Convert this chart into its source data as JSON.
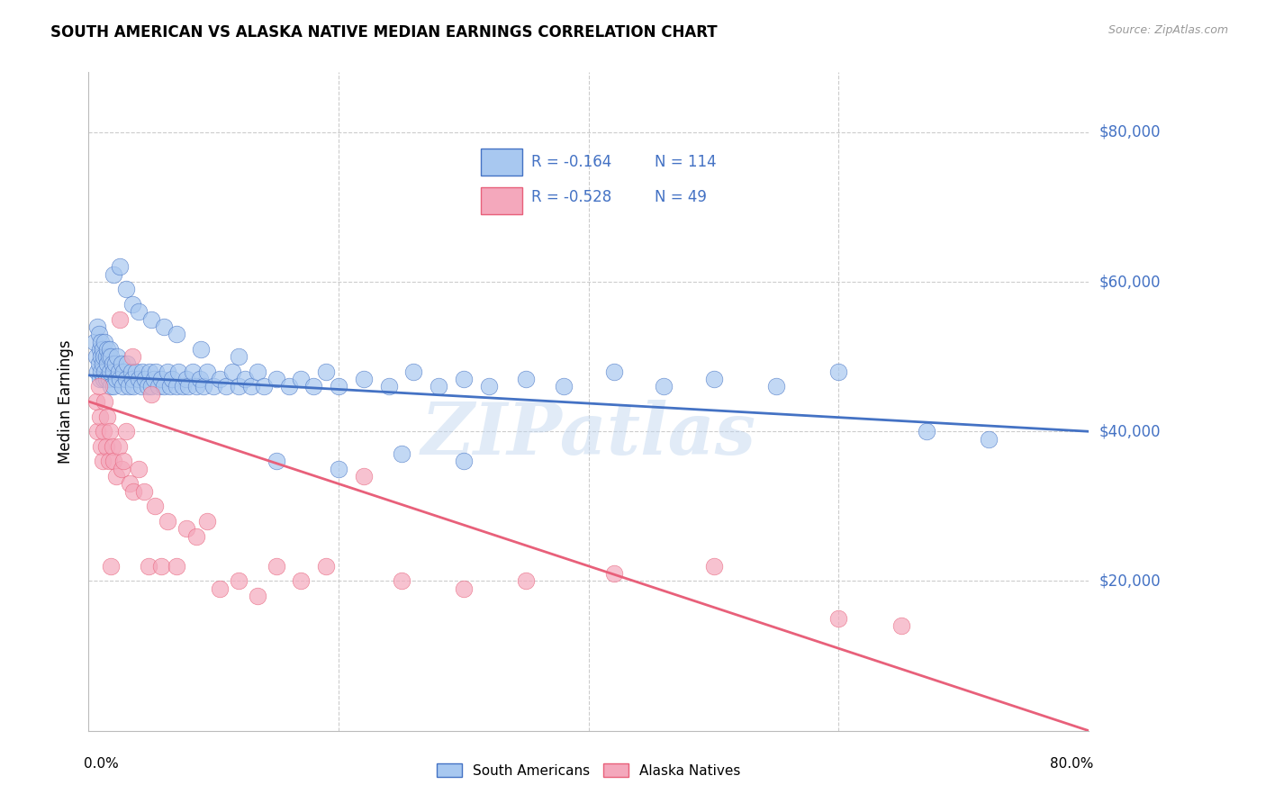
{
  "title": "SOUTH AMERICAN VS ALASKA NATIVE MEDIAN EARNINGS CORRELATION CHART",
  "source": "Source: ZipAtlas.com",
  "ylabel": "Median Earnings",
  "ytick_labels": [
    "$80,000",
    "$60,000",
    "$40,000",
    "$20,000"
  ],
  "ytick_values": [
    80000,
    60000,
    40000,
    20000
  ],
  "ylim": [
    0,
    88000
  ],
  "xlim": [
    0.0,
    0.8
  ],
  "blue_R": "-0.164",
  "blue_N": "114",
  "pink_R": "-0.528",
  "pink_N": "49",
  "blue_color": "#A8C8F0",
  "pink_color": "#F4A8BC",
  "blue_line_color": "#4472C4",
  "pink_line_color": "#E8607A",
  "text_blue": "#4472C4",
  "watermark": "ZIPatlas",
  "legend_label_blue": "South Americans",
  "legend_label_pink": "Alaska Natives",
  "blue_line_x0": 0.0,
  "blue_line_y0": 47500,
  "blue_line_x1": 0.8,
  "blue_line_y1": 40000,
  "pink_line_x0": 0.0,
  "pink_line_y0": 44000,
  "pink_line_x1": 0.8,
  "pink_line_y1": 0,
  "blue_scatter_x": [
    0.005,
    0.006,
    0.007,
    0.007,
    0.008,
    0.008,
    0.009,
    0.009,
    0.01,
    0.01,
    0.01,
    0.011,
    0.011,
    0.012,
    0.012,
    0.013,
    0.013,
    0.014,
    0.014,
    0.015,
    0.015,
    0.016,
    0.016,
    0.017,
    0.017,
    0.018,
    0.018,
    0.019,
    0.02,
    0.02,
    0.021,
    0.022,
    0.023,
    0.024,
    0.025,
    0.026,
    0.027,
    0.028,
    0.03,
    0.031,
    0.032,
    0.034,
    0.035,
    0.036,
    0.038,
    0.04,
    0.042,
    0.043,
    0.045,
    0.047,
    0.049,
    0.05,
    0.052,
    0.054,
    0.056,
    0.058,
    0.06,
    0.063,
    0.065,
    0.067,
    0.07,
    0.072,
    0.075,
    0.078,
    0.08,
    0.083,
    0.086,
    0.089,
    0.092,
    0.095,
    0.1,
    0.105,
    0.11,
    0.115,
    0.12,
    0.125,
    0.13,
    0.135,
    0.14,
    0.15,
    0.16,
    0.17,
    0.18,
    0.19,
    0.2,
    0.22,
    0.24,
    0.26,
    0.28,
    0.3,
    0.32,
    0.35,
    0.38,
    0.42,
    0.46,
    0.5,
    0.55,
    0.6,
    0.67,
    0.72,
    0.02,
    0.025,
    0.03,
    0.035,
    0.04,
    0.05,
    0.06,
    0.07,
    0.09,
    0.12,
    0.15,
    0.2,
    0.25,
    0.3
  ],
  "blue_scatter_y": [
    52000,
    50000,
    54000,
    48000,
    53000,
    49000,
    51000,
    47000,
    52000,
    50000,
    48000,
    51000,
    49000,
    50000,
    47000,
    52000,
    48000,
    50000,
    47000,
    51000,
    49000,
    50000,
    47000,
    51000,
    48000,
    50000,
    46000,
    49000,
    48000,
    46000,
    49000,
    47000,
    50000,
    48000,
    47000,
    49000,
    46000,
    48000,
    47000,
    49000,
    46000,
    48000,
    47000,
    46000,
    48000,
    47000,
    46000,
    48000,
    47000,
    46000,
    48000,
    46000,
    47000,
    48000,
    46000,
    47000,
    46000,
    48000,
    46000,
    47000,
    46000,
    48000,
    46000,
    47000,
    46000,
    48000,
    46000,
    47000,
    46000,
    48000,
    46000,
    47000,
    46000,
    48000,
    46000,
    47000,
    46000,
    48000,
    46000,
    47000,
    46000,
    47000,
    46000,
    48000,
    46000,
    47000,
    46000,
    48000,
    46000,
    47000,
    46000,
    47000,
    46000,
    48000,
    46000,
    47000,
    46000,
    48000,
    40000,
    39000,
    61000,
    62000,
    59000,
    57000,
    56000,
    55000,
    54000,
    53000,
    51000,
    50000,
    36000,
    35000,
    37000,
    36000
  ],
  "pink_scatter_x": [
    0.006,
    0.007,
    0.008,
    0.009,
    0.01,
    0.011,
    0.012,
    0.013,
    0.014,
    0.015,
    0.016,
    0.017,
    0.018,
    0.019,
    0.02,
    0.022,
    0.024,
    0.026,
    0.028,
    0.03,
    0.033,
    0.036,
    0.04,
    0.044,
    0.048,
    0.053,
    0.058,
    0.063,
    0.07,
    0.078,
    0.086,
    0.095,
    0.105,
    0.12,
    0.135,
    0.15,
    0.17,
    0.19,
    0.22,
    0.25,
    0.3,
    0.35,
    0.42,
    0.5,
    0.6,
    0.65,
    0.025,
    0.035,
    0.05
  ],
  "pink_scatter_y": [
    44000,
    40000,
    46000,
    42000,
    38000,
    36000,
    40000,
    44000,
    38000,
    42000,
    36000,
    40000,
    22000,
    38000,
    36000,
    34000,
    38000,
    35000,
    36000,
    40000,
    33000,
    32000,
    35000,
    32000,
    22000,
    30000,
    22000,
    28000,
    22000,
    27000,
    26000,
    28000,
    19000,
    20000,
    18000,
    22000,
    20000,
    22000,
    34000,
    20000,
    19000,
    20000,
    21000,
    22000,
    15000,
    14000,
    55000,
    50000,
    45000
  ]
}
